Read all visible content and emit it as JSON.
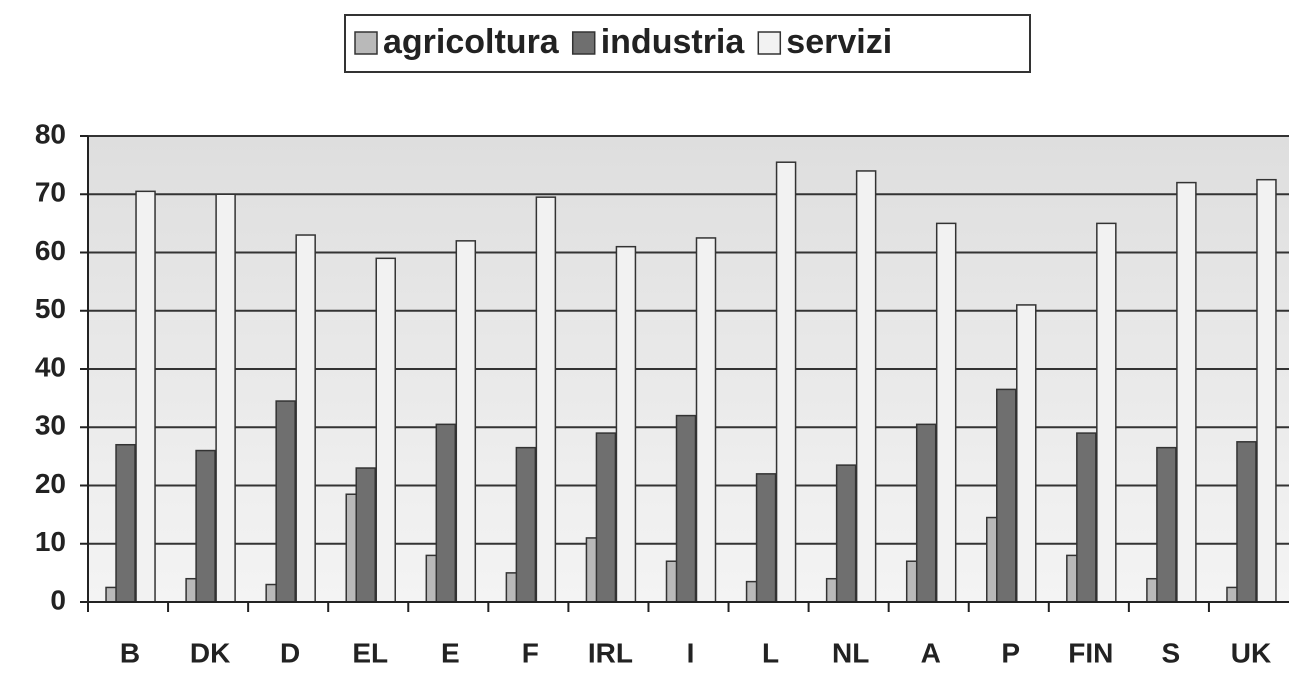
{
  "chart_data": {
    "type": "bar",
    "categories": [
      "B",
      "DK",
      "D",
      "EL",
      "E",
      "F",
      "IRL",
      "I",
      "L",
      "NL",
      "A",
      "P",
      "FIN",
      "S",
      "UK"
    ],
    "series": [
      {
        "name": "agricoltura",
        "color": "#b9b9b9",
        "values": [
          2.5,
          4,
          3,
          18.5,
          8,
          5,
          11,
          7,
          3.5,
          4,
          7,
          14.5,
          8,
          4,
          2.5
        ]
      },
      {
        "name": "industria",
        "color": "#6f6f6f",
        "values": [
          27,
          26,
          34.5,
          23,
          30.5,
          26.5,
          29,
          32,
          22,
          23.5,
          30.5,
          36.5,
          29,
          26.5,
          27.5
        ]
      },
      {
        "name": "servizi",
        "color": "#f2f2f2",
        "values": [
          70.5,
          70,
          63,
          59,
          62,
          69.5,
          61,
          62.5,
          75.5,
          74,
          65,
          51,
          65,
          72,
          72.5
        ]
      }
    ],
    "ylim": [
      0,
      80
    ],
    "yticks": [
      0,
      10,
      20,
      30,
      40,
      50,
      60,
      70,
      80
    ],
    "grid": true,
    "legend": "top"
  }
}
